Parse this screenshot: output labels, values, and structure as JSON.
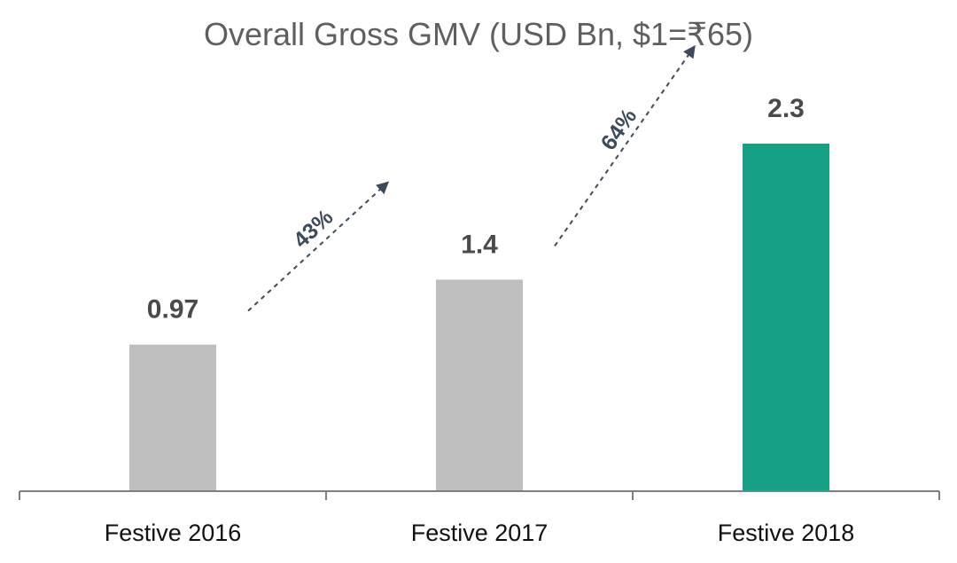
{
  "chart_data": {
    "type": "bar",
    "title": "Overall Gross GMV (USD Bn, $1=₹65)",
    "categories": [
      "Festive 2016",
      "Festive 2017",
      "Festive 2018"
    ],
    "values": [
      0.97,
      1.4,
      2.3
    ],
    "value_labels": [
      "0.97",
      "1.4",
      "2.3"
    ],
    "colors": [
      "#bfbebe",
      "#bfbebe",
      "#16a085"
    ],
    "ylim": [
      0,
      2.3
    ],
    "xlabel": "",
    "ylabel": "",
    "grid": false,
    "annotations": [
      {
        "text": "43%",
        "from": "Festive 2016",
        "to": "Festive 2017",
        "arrow_color": "#3c4a5c"
      },
      {
        "text": "64%",
        "from": "Festive 2017",
        "to": "Festive 2018",
        "arrow_color": "#3c4a5c"
      }
    ]
  }
}
